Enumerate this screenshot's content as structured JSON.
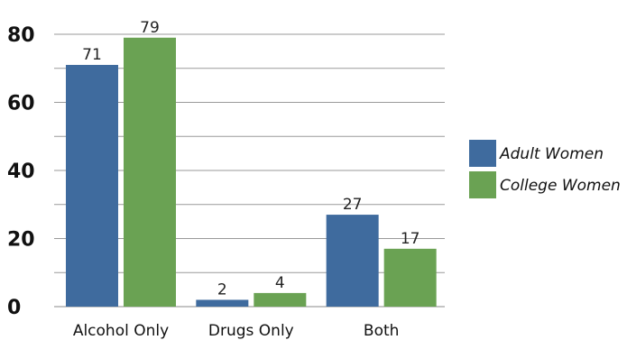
{
  "chart_data": {
    "type": "bar",
    "categories": [
      "Alcohol Only",
      "Drugs Only",
      "Both"
    ],
    "series": [
      {
        "name": "Adult Women",
        "values": [
          71,
          2,
          27
        ],
        "color": "#3f6b9e"
      },
      {
        "name": "College Women",
        "values": [
          79,
          4,
          17
        ],
        "color": "#6aa253"
      }
    ],
    "ylim": [
      0,
      80
    ],
    "y_ticks": [
      "0",
      "20",
      "40",
      "60",
      "80"
    ],
    "y_minor_step": 10,
    "grid": true,
    "legend": "right",
    "data_labels": true,
    "title": "",
    "xlabel": "",
    "ylabel": ""
  }
}
